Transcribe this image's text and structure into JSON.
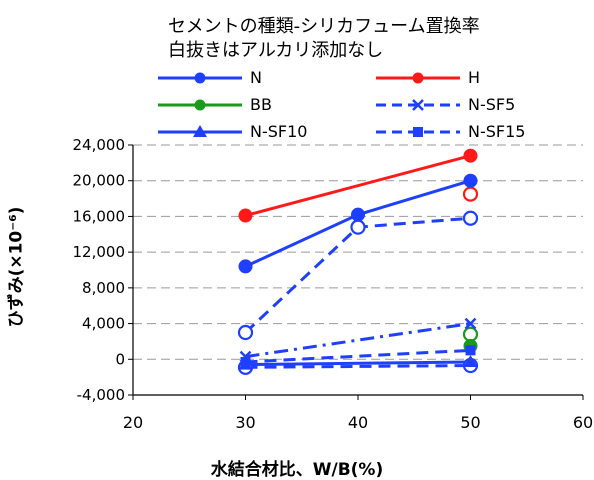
{
  "legend": {
    "title_line1": "セメントの種類-シリカフューム置換率",
    "title_line2": "白抜きはアルカリ添加なし"
  },
  "chart_data": {
    "type": "line",
    "xlabel": "水結合材比、W/B(%)",
    "ylabel": "ひずみ(×10⁻⁶)",
    "xlim": [
      20,
      60
    ],
    "ylim": [
      -4000,
      24000
    ],
    "x_ticks": [
      20,
      30,
      40,
      50,
      60
    ],
    "y_ticks": [
      -4000,
      0,
      4000,
      8000,
      12000,
      16000,
      20000,
      24000
    ],
    "y_tick_labels": [
      "-4,000",
      "0",
      "4,000",
      "8,000",
      "12,000",
      "16,000",
      "20,000",
      "24,000"
    ],
    "grid": "horizontal-dashed",
    "series": [
      {
        "name": "N",
        "color": "#1f3fff",
        "dash": "solid",
        "marker": "circle",
        "x": [
          30,
          40,
          50
        ],
        "y": [
          10400,
          16200,
          20000
        ]
      },
      {
        "name": "H",
        "color": "#ff1a1a",
        "dash": "solid",
        "marker": "circle",
        "x": [
          30,
          50
        ],
        "y": [
          16100,
          22800
        ]
      },
      {
        "name": "BB",
        "color": "#1a9a1a",
        "dash": "solid",
        "marker": "circle",
        "x": [
          50
        ],
        "y": [
          1500
        ]
      },
      {
        "name": "N-SF5",
        "color": "#1f3fff",
        "dash": "dashdot",
        "marker": "x",
        "x": [
          30,
          50
        ],
        "y": [
          300,
          4000
        ]
      },
      {
        "name": "N-SF10",
        "color": "#1f3fff",
        "dash": "solid",
        "marker": "triangle",
        "x": [
          30,
          50
        ],
        "y": [
          -600,
          -300
        ]
      },
      {
        "name": "N-SF15",
        "color": "#1f3fff",
        "dash": "dashed",
        "marker": "square",
        "x": [
          30,
          50
        ],
        "y": [
          -300,
          1000
        ]
      }
    ],
    "open_series": [
      {
        "color": "#1f3fff",
        "dash": "dashed",
        "x": [
          30,
          40,
          50
        ],
        "y": [
          3000,
          14800,
          15800
        ]
      },
      {
        "color": "#ff1a1a",
        "dash": "none",
        "x": [
          50
        ],
        "y": [
          18500
        ]
      },
      {
        "color": "#1a9a1a",
        "dash": "none",
        "x": [
          50
        ],
        "y": [
          2800
        ]
      },
      {
        "color": "#1f3fff",
        "dash": "dashed",
        "x": [
          30,
          50
        ],
        "y": [
          -900,
          -700
        ]
      }
    ]
  }
}
